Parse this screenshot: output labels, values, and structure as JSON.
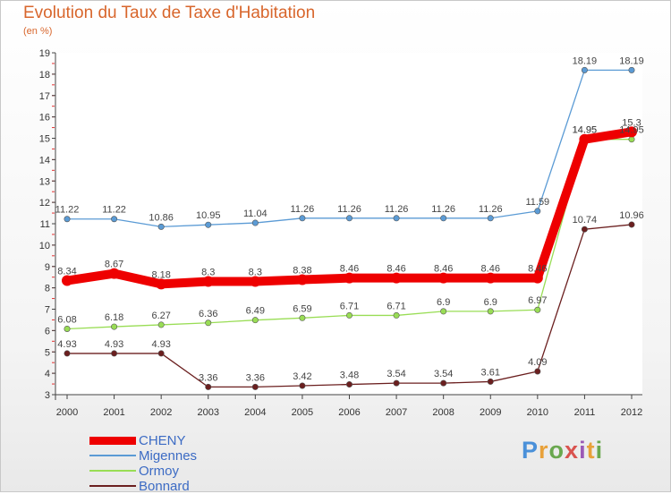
{
  "chart_data": {
    "type": "line",
    "title": "Evolution du Taux de Taxe d'Habitation",
    "subtitle": "(en %)",
    "x": [
      "2000",
      "2001",
      "2002",
      "2003",
      "2004",
      "2005",
      "2006",
      "2007",
      "2008",
      "2009",
      "2010",
      "2011",
      "2012"
    ],
    "ylim": [
      3,
      19
    ],
    "yticks": [
      "3",
      "4",
      "5",
      "6",
      "7",
      "8",
      "9",
      "10",
      "11",
      "12",
      "13",
      "14",
      "15",
      "16",
      "17",
      "18",
      "19"
    ],
    "grid": false,
    "legend_position": "bottom-left",
    "series": [
      {
        "name": "CHENY",
        "color": "#ee0000",
        "values": [
          8.34,
          8.67,
          8.18,
          8.3,
          8.3,
          8.38,
          8.46,
          8.46,
          8.46,
          8.46,
          8.46,
          14.95,
          15.3
        ],
        "labels": [
          "8.34",
          "8.67",
          "8.18",
          "8.3",
          "8.3",
          "8.38",
          "8.46",
          "8.46",
          "8.46",
          "8.46",
          "8.46",
          "14.95",
          "15.3"
        ]
      },
      {
        "name": "Migennes",
        "color": "#5b9bd5",
        "values": [
          11.22,
          11.22,
          10.86,
          10.95,
          11.04,
          11.26,
          11.26,
          11.26,
          11.26,
          11.26,
          11.59,
          18.19,
          18.19
        ],
        "labels": [
          "11.22",
          "11.22",
          "10.86",
          "10.95",
          "11.04",
          "11.26",
          "11.26",
          "11.26",
          "11.26",
          "11.26",
          "11.59",
          "18.19",
          "18.19"
        ]
      },
      {
        "name": "Ormoy",
        "color": "#99dd55",
        "values": [
          6.08,
          6.18,
          6.27,
          6.36,
          6.49,
          6.59,
          6.71,
          6.71,
          6.9,
          6.9,
          6.97,
          14.95,
          14.95
        ],
        "labels": [
          "6.08",
          "6.18",
          "6.27",
          "6.36",
          "6.49",
          "6.59",
          "6.71",
          "6.71",
          "6.9",
          "6.9",
          "6.97",
          "14.95",
          "14.95"
        ]
      },
      {
        "name": "Bonnard",
        "color": "#6b1f1f",
        "values": [
          4.93,
          4.93,
          4.93,
          3.36,
          3.36,
          3.42,
          3.48,
          3.54,
          3.54,
          3.61,
          4.09,
          10.74,
          10.96
        ],
        "labels": [
          "4.93",
          "4.93",
          "4.93",
          "3.36",
          "3.36",
          "3.42",
          "3.48",
          "3.54",
          "3.54",
          "3.61",
          "4.09",
          "10.74",
          "10.96"
        ]
      }
    ]
  },
  "logo": {
    "text": "Proxiti",
    "letters": [
      "P",
      "r",
      "o",
      "x",
      "i",
      "t",
      "i"
    ],
    "colors": [
      "#4a90d9",
      "#e8a13a",
      "#6aa84f",
      "#d9534f",
      "#9b59b6",
      "#e8a13a",
      "#6aa84f"
    ]
  }
}
